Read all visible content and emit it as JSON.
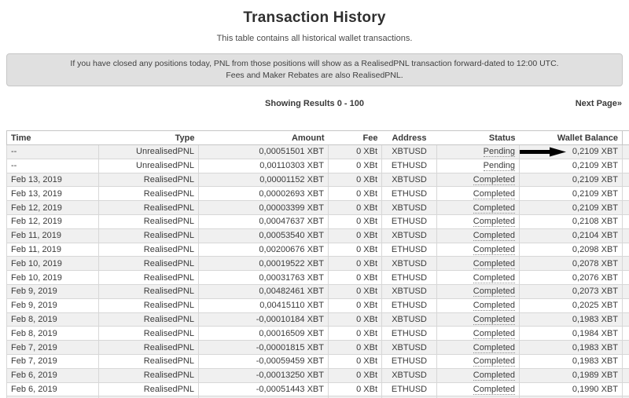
{
  "page": {
    "title": "Transaction History",
    "subtitle": "This table contains all historical wallet transactions.",
    "notice_line1": "If you have closed any positions today, PNL from those positions will show as a RealisedPNL transaction forward-dated to 12:00 UTC.",
    "notice_line2": "Fees and Maker Rebates are also RealisedPNL.",
    "results_text": "Showing Results 0 - 100",
    "next_page_label": "Next Page»"
  },
  "colors": {
    "stripe_row": "#f0f0f0",
    "notice_bg": "#e0e0e0",
    "table_border": "#c6c6c6",
    "text": "#3b3b3b",
    "arrow": "#000000"
  },
  "icons": {
    "highlight_arrow": "right-arrow-icon",
    "next_page_glyph": "»"
  },
  "table": {
    "columns": [
      "Time",
      "Type",
      "Amount",
      "Fee",
      "Address",
      "Status",
      "Wallet Balance"
    ],
    "rows": [
      {
        "time": "--",
        "type": "UnrealisedPNL",
        "amount": "0,00051501 XBT",
        "fee": "0 XBt",
        "address": "XBTUSD",
        "status": "Pending",
        "balance": "0,2109 XBT",
        "arrow": true
      },
      {
        "time": "--",
        "type": "UnrealisedPNL",
        "amount": "0,00110303 XBT",
        "fee": "0 XBt",
        "address": "ETHUSD",
        "status": "Pending",
        "balance": "0,2109 XBT",
        "arrow": false
      },
      {
        "time": "Feb 13, 2019",
        "type": "RealisedPNL",
        "amount": "0,00001152 XBT",
        "fee": "0 XBt",
        "address": "XBTUSD",
        "status": "Completed",
        "balance": "0,2109 XBT",
        "arrow": false
      },
      {
        "time": "Feb 13, 2019",
        "type": "RealisedPNL",
        "amount": "0,00002693 XBT",
        "fee": "0 XBt",
        "address": "ETHUSD",
        "status": "Completed",
        "balance": "0,2109 XBT",
        "arrow": false
      },
      {
        "time": "Feb 12, 2019",
        "type": "RealisedPNL",
        "amount": "0,00003399 XBT",
        "fee": "0 XBt",
        "address": "XBTUSD",
        "status": "Completed",
        "balance": "0,2109 XBT",
        "arrow": false
      },
      {
        "time": "Feb 12, 2019",
        "type": "RealisedPNL",
        "amount": "0,00047637 XBT",
        "fee": "0 XBt",
        "address": "ETHUSD",
        "status": "Completed",
        "balance": "0,2108 XBT",
        "arrow": false
      },
      {
        "time": "Feb 11, 2019",
        "type": "RealisedPNL",
        "amount": "0,00053540 XBT",
        "fee": "0 XBt",
        "address": "XBTUSD",
        "status": "Completed",
        "balance": "0,2104 XBT",
        "arrow": false
      },
      {
        "time": "Feb 11, 2019",
        "type": "RealisedPNL",
        "amount": "0,00200676 XBT",
        "fee": "0 XBt",
        "address": "ETHUSD",
        "status": "Completed",
        "balance": "0,2098 XBT",
        "arrow": false
      },
      {
        "time": "Feb 10, 2019",
        "type": "RealisedPNL",
        "amount": "0,00019522 XBT",
        "fee": "0 XBt",
        "address": "XBTUSD",
        "status": "Completed",
        "balance": "0,2078 XBT",
        "arrow": false
      },
      {
        "time": "Feb 10, 2019",
        "type": "RealisedPNL",
        "amount": "0,00031763 XBT",
        "fee": "0 XBt",
        "address": "ETHUSD",
        "status": "Completed",
        "balance": "0,2076 XBT",
        "arrow": false
      },
      {
        "time": "Feb 9, 2019",
        "type": "RealisedPNL",
        "amount": "0,00482461 XBT",
        "fee": "0 XBt",
        "address": "XBTUSD",
        "status": "Completed",
        "balance": "0,2073 XBT",
        "arrow": false
      },
      {
        "time": "Feb 9, 2019",
        "type": "RealisedPNL",
        "amount": "0,00415110 XBT",
        "fee": "0 XBt",
        "address": "ETHUSD",
        "status": "Completed",
        "balance": "0,2025 XBT",
        "arrow": false
      },
      {
        "time": "Feb 8, 2019",
        "type": "RealisedPNL",
        "amount": "-0,00010184 XBT",
        "fee": "0 XBt",
        "address": "XBTUSD",
        "status": "Completed",
        "balance": "0,1983 XBT",
        "arrow": false
      },
      {
        "time": "Feb 8, 2019",
        "type": "RealisedPNL",
        "amount": "0,00016509 XBT",
        "fee": "0 XBt",
        "address": "ETHUSD",
        "status": "Completed",
        "balance": "0,1984 XBT",
        "arrow": false
      },
      {
        "time": "Feb 7, 2019",
        "type": "RealisedPNL",
        "amount": "-0,00001815 XBT",
        "fee": "0 XBt",
        "address": "XBTUSD",
        "status": "Completed",
        "balance": "0,1983 XBT",
        "arrow": false
      },
      {
        "time": "Feb 7, 2019",
        "type": "RealisedPNL",
        "amount": "-0,00059459 XBT",
        "fee": "0 XBt",
        "address": "ETHUSD",
        "status": "Completed",
        "balance": "0,1983 XBT",
        "arrow": false
      },
      {
        "time": "Feb 6, 2019",
        "type": "RealisedPNL",
        "amount": "-0,00013250 XBT",
        "fee": "0 XBt",
        "address": "XBTUSD",
        "status": "Completed",
        "balance": "0,1989 XBT",
        "arrow": false
      },
      {
        "time": "Feb 6, 2019",
        "type": "RealisedPNL",
        "amount": "-0,00051443 XBT",
        "fee": "0 XBt",
        "address": "ETHUSD",
        "status": "Completed",
        "balance": "0,1990 XBT",
        "arrow": false
      }
    ]
  }
}
